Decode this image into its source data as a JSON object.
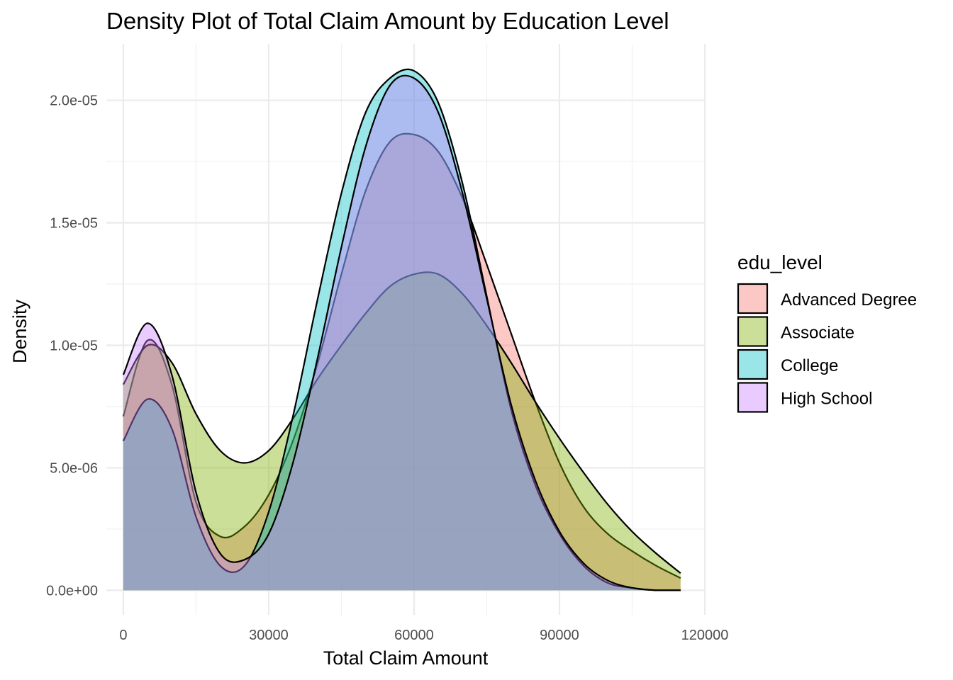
{
  "chart_data": {
    "type": "area",
    "title": "Density Plot of Total Claim Amount by Education Level",
    "xlabel": "Total Claim Amount",
    "ylabel": "Density",
    "xlim": [
      -3500,
      120000
    ],
    "ylim": [
      -1e-06,
      2.23e-05
    ],
    "x_ticks": [
      0,
      30000,
      60000,
      90000,
      120000
    ],
    "x_tick_labels": [
      "0",
      "30000",
      "60000",
      "90000",
      "120000"
    ],
    "y_ticks": [
      0,
      5e-06,
      1e-05,
      1.5e-05,
      2e-05
    ],
    "y_tick_labels": [
      "0.0e+00",
      "5.0e-06",
      "1.0e-05",
      "1.5e-05",
      "2.0e-05"
    ],
    "grid": true,
    "legend_position": "right",
    "legend_title": "edu_level",
    "fill_opacity": 0.4,
    "x": [
      0,
      5000,
      10000,
      15000,
      20000,
      25000,
      30000,
      35000,
      40000,
      45000,
      50000,
      55000,
      60000,
      65000,
      70000,
      75000,
      80000,
      85000,
      90000,
      95000,
      100000,
      105000,
      110000,
      115000
    ],
    "series": [
      {
        "name": "Advanced Degree",
        "color": "#F8766D",
        "values": [
          7.1e-06,
          1.02e-05,
          8.4e-06,
          3.6e-06,
          2.2e-06,
          2.6e-06,
          3.9e-06,
          6.1e-06,
          9.2e-06,
          1.29e-05,
          1.63e-05,
          1.83e-05,
          1.86e-05,
          1.79e-05,
          1.6e-05,
          1.33e-05,
          1.05e-05,
          7.7e-06,
          5.2e-06,
          3.4e-06,
          2.3e-06,
          1.6e-06,
          1e-06,
          5e-07
        ]
      },
      {
        "name": "Associate",
        "color": "#7CAE00",
        "values": [
          8.4e-06,
          1e-05,
          9.3e-06,
          7.2e-06,
          5.7e-06,
          5.2e-06,
          5.7e-06,
          7e-06,
          8.6e-06,
          1e-05,
          1.13e-05,
          1.24e-05,
          1.29e-05,
          1.29e-05,
          1.21e-05,
          1.08e-05,
          9.3e-06,
          7.7e-06,
          6.2e-06,
          4.8e-06,
          3.5e-06,
          2.4e-06,
          1.5e-06,
          7e-07
        ]
      },
      {
        "name": "College",
        "color": "#00BFC4",
        "values": [
          6.1e-06,
          7.8e-06,
          6.6e-06,
          3e-06,
          1e-06,
          1e-06,
          3.2e-06,
          7.1e-06,
          1.18e-05,
          1.62e-05,
          1.95e-05,
          2.09e-05,
          2.12e-05,
          1.99e-05,
          1.66e-05,
          1.2e-05,
          7.4e-06,
          4.3e-06,
          2.3e-06,
          1e-06,
          3e-07,
          1e-07,
          0,
          0
        ]
      },
      {
        "name": "High School",
        "color": "#C77CFF",
        "values": [
          8.8e-06,
          1.09e-05,
          8.8e-06,
          4e-06,
          1.5e-06,
          1.25e-06,
          2.3e-06,
          5.2e-06,
          9.4e-06,
          1.4e-05,
          1.81e-05,
          2.06e-05,
          2.09e-05,
          1.95e-05,
          1.62e-05,
          1.19e-05,
          7.6e-06,
          4.5e-06,
          2.4e-06,
          1.1e-06,
          4e-07,
          1e-07,
          0,
          0
        ]
      }
    ]
  }
}
